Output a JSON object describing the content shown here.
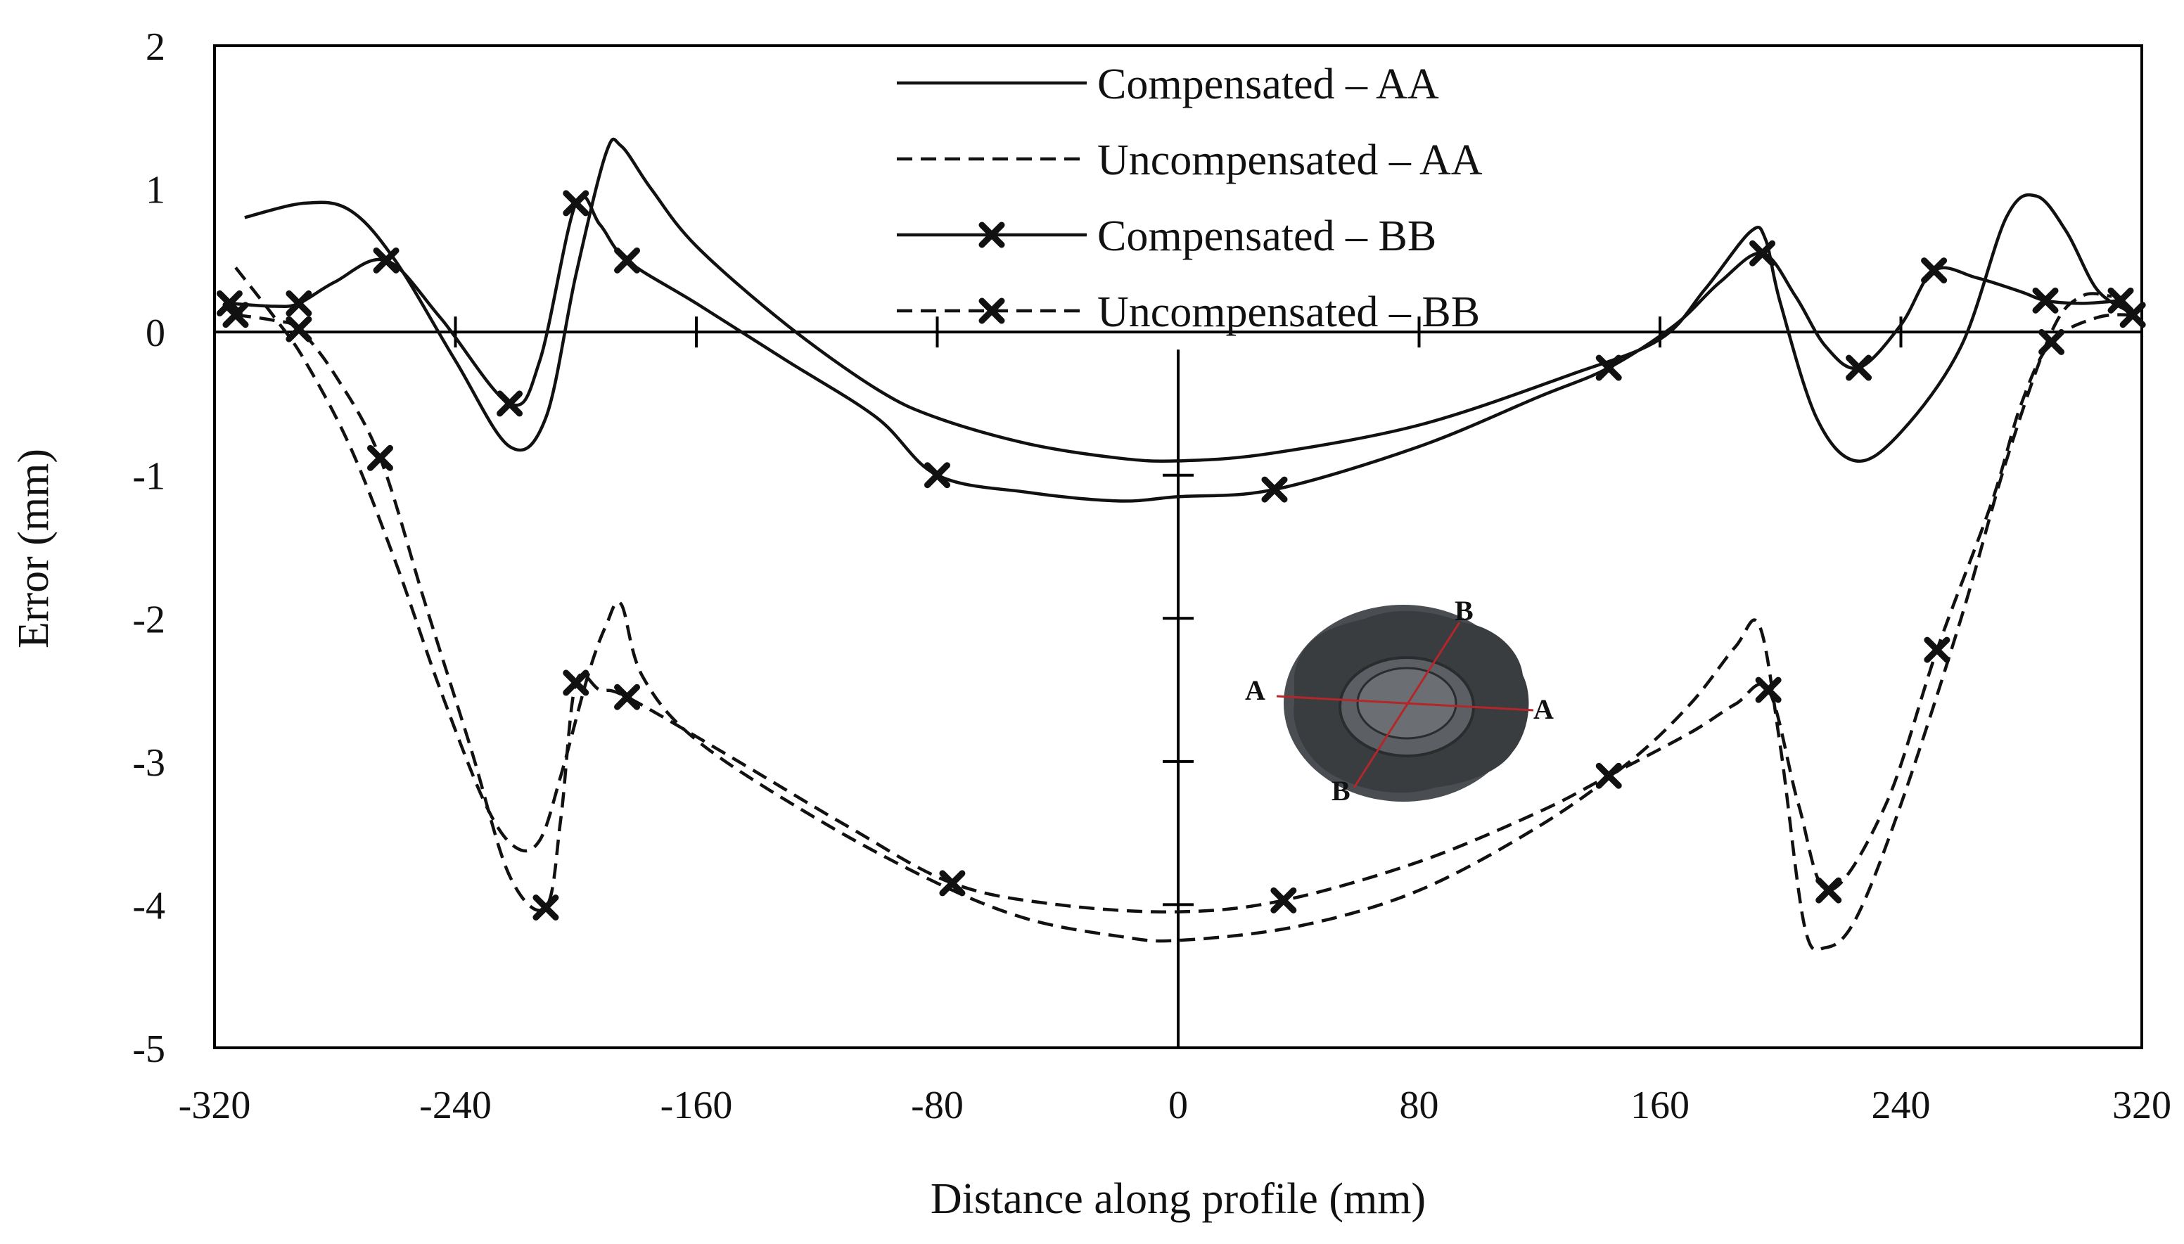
{
  "chart_data": {
    "type": "line",
    "title": "",
    "xlabel": "Distance along profile (mm)",
    "ylabel": "Error (mm)",
    "xlim": [
      -320,
      320
    ],
    "ylim": [
      -5,
      2
    ],
    "xticks": [
      -320,
      -240,
      -160,
      -80,
      0,
      80,
      160,
      240,
      320
    ],
    "yticks": [
      2,
      1,
      0,
      -1,
      -2,
      -3,
      -4,
      -5
    ],
    "legend_position": "top-center",
    "series": [
      {
        "name": "Compensated – AA",
        "style": "solid",
        "marker": "none",
        "x": [
          -310,
          -290,
          -275,
          -260,
          -240,
          -222,
          -210,
          -200,
          -190,
          -185,
          -175,
          -160,
          -130,
          -100,
          -80,
          -50,
          -20,
          0,
          30,
          80,
          130,
          160,
          175,
          190,
          195,
          200,
          212,
          225,
          240,
          260,
          275,
          285,
          295,
          305,
          315
        ],
        "y": [
          0.8,
          0.9,
          0.85,
          0.5,
          -0.2,
          -0.8,
          -0.6,
          0.4,
          1.25,
          1.3,
          1.0,
          0.6,
          0.05,
          -0.4,
          -0.6,
          -0.78,
          -0.88,
          -0.9,
          -0.85,
          -0.65,
          -0.3,
          -0.05,
          0.3,
          0.7,
          0.65,
          0.2,
          -0.6,
          -0.9,
          -0.7,
          -0.1,
          0.8,
          0.95,
          0.7,
          0.3,
          0.15
        ]
      },
      {
        "name": "Uncompensated – AA",
        "style": "dashed",
        "marker": "none",
        "x": [
          -313,
          -300,
          -290,
          -275,
          -260,
          -245,
          -230,
          -220,
          -212,
          -205,
          -196,
          -190,
          -185,
          -178,
          -160,
          -120,
          -80,
          -50,
          -20,
          0,
          40,
          80,
          120,
          150,
          170,
          185,
          193,
          200,
          208,
          215,
          225,
          240,
          260,
          275,
          290,
          300,
          310
        ],
        "y": [
          0.45,
          0.1,
          -0.2,
          -0.8,
          -1.6,
          -2.5,
          -3.3,
          -3.6,
          -3.55,
          -3.1,
          -2.4,
          -2.05,
          -1.9,
          -2.4,
          -2.85,
          -3.4,
          -3.85,
          -4.1,
          -4.22,
          -4.25,
          -4.15,
          -3.9,
          -3.45,
          -3.0,
          -2.6,
          -2.2,
          -2.05,
          -2.9,
          -4.15,
          -4.3,
          -4.1,
          -3.3,
          -2.0,
          -0.9,
          0.0,
          0.25,
          0.25
        ]
      },
      {
        "name": "Compensated – BB",
        "style": "solid",
        "marker": "x",
        "x": [
          -315,
          -292,
          -263,
          -222,
          -200,
          -183,
          -80,
          32,
          143,
          194,
          226,
          251,
          288,
          313
        ],
        "y": [
          0.2,
          0.2,
          0.5,
          -0.5,
          0.9,
          0.5,
          -1.0,
          -1.1,
          -0.25,
          0.55,
          -0.25,
          0.43,
          0.22,
          0.22
        ],
        "markers": [
          [
            -315,
            0.2
          ],
          [
            -292,
            0.2
          ],
          [
            -263,
            0.5
          ],
          [
            -222,
            -0.5
          ],
          [
            -200,
            0.9
          ],
          [
            -183,
            0.5
          ],
          [
            -80,
            -1.0
          ],
          [
            32,
            -1.1
          ],
          [
            143,
            -0.25
          ],
          [
            194,
            0.55
          ],
          [
            226,
            -0.25
          ],
          [
            251,
            0.43
          ],
          [
            288,
            0.22
          ],
          [
            313,
            0.22
          ]
        ],
        "curve_x": [
          -315,
          -300,
          -292,
          -280,
          -263,
          -245,
          -222,
          -212,
          -200,
          -192,
          -183,
          -160,
          -130,
          -100,
          -80,
          -50,
          -20,
          0,
          32,
          80,
          120,
          143,
          165,
          180,
          194,
          205,
          215,
          226,
          240,
          251,
          265,
          280,
          288,
          300,
          313
        ],
        "curve_y": [
          0.2,
          0.18,
          0.2,
          0.35,
          0.5,
          0.1,
          -0.5,
          -0.2,
          0.9,
          0.75,
          0.5,
          0.2,
          -0.2,
          -0.6,
          -1.0,
          -1.12,
          -1.18,
          -1.15,
          -1.1,
          -0.8,
          -0.45,
          -0.25,
          0.05,
          0.35,
          0.55,
          0.25,
          -0.1,
          -0.25,
          0.05,
          0.43,
          0.38,
          0.28,
          0.22,
          0.2,
          0.22
        ]
      },
      {
        "name": "Uncompensated – BB",
        "style": "dashed",
        "marker": "x",
        "markers": [
          [
            -313,
            0.12
          ],
          [
            -292,
            0.02
          ],
          [
            -265,
            -0.88
          ],
          [
            -210,
            -4.02
          ],
          [
            -200,
            -2.45
          ],
          [
            -183,
            -2.55
          ],
          [
            -75,
            -3.85
          ],
          [
            35,
            -3.97
          ],
          [
            143,
            -3.1
          ],
          [
            196,
            -2.5
          ],
          [
            216,
            -3.9
          ],
          [
            252,
            -2.22
          ],
          [
            290,
            -0.07
          ],
          [
            317,
            0.12
          ]
        ],
        "curve_x": [
          -313,
          -300,
          -292,
          -280,
          -265,
          -250,
          -235,
          -222,
          -210,
          -205,
          -200,
          -192,
          -183,
          -150,
          -110,
          -75,
          -40,
          0,
          35,
          80,
          120,
          143,
          170,
          185,
          196,
          206,
          216,
          235,
          252,
          270,
          280,
          290,
          305,
          317
        ],
        "curve_y": [
          0.12,
          0.08,
          0.02,
          -0.3,
          -0.88,
          -1.9,
          -2.9,
          -3.8,
          -4.02,
          -3.4,
          -2.45,
          -2.5,
          -2.55,
          -2.95,
          -3.45,
          -3.85,
          -4.0,
          -4.05,
          -3.97,
          -3.7,
          -3.35,
          -3.1,
          -2.8,
          -2.6,
          -2.5,
          -3.3,
          -3.9,
          -3.3,
          -2.22,
          -1.2,
          -0.5,
          -0.07,
          0.1,
          0.12
        ]
      }
    ],
    "inset": {
      "description_labels": [
        "A",
        "A",
        "B",
        "B"
      ]
    }
  },
  "colors": {
    "line": "#111111",
    "axis": "#000000",
    "inset_dark": "#3a3d40",
    "inset_light": "#6b6f73",
    "inset_section": "#b3262a"
  }
}
